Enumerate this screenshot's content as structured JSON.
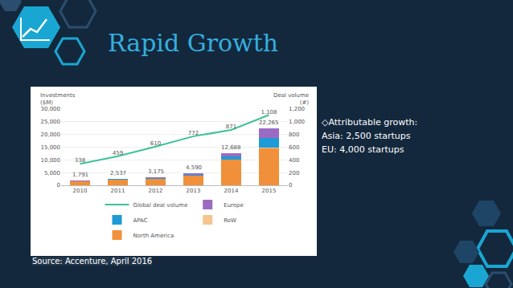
{
  "slide": {
    "title": "Rapid Growth",
    "bullets": [
      "◇Attributable growth:",
      "Asia: 2,500 startups",
      "EU: 4,000 startups"
    ],
    "source": "Source: Accenture, April 2016"
  },
  "chart_data": {
    "type": "bar",
    "stacked": true,
    "grid": true,
    "legend": "bottom",
    "data_labels": true,
    "y_label": "Investments ($M)",
    "y2_label": "Deal volume (#)",
    "categories": [
      "2010",
      "2011",
      "2012",
      "2013",
      "2014",
      "2015"
    ],
    "series": [
      {
        "name": "North America",
        "color": "#f0903a",
        "values": [
          1500,
          2100,
          2600,
          3700,
          10000,
          14500
        ]
      },
      {
        "name": "RoW",
        "color": "#f6c48e",
        "values": [
          50,
          60,
          75,
          90,
          188,
          265
        ]
      },
      {
        "name": "APAC",
        "color": "#1e9ad6",
        "values": [
          141,
          227,
          300,
          450,
          1300,
          4000
        ]
      },
      {
        "name": "Europe",
        "color": "#9b6bc4",
        "values": [
          100,
          150,
          200,
          350,
          1200,
          3500
        ]
      },
      {
        "name": "Global deal volume",
        "type": "line",
        "axis": "y2",
        "color": "#3fc19a",
        "values": [
          338,
          459,
          610,
          772,
          871,
          1108
        ],
        "value_labels": [
          "338",
          "459",
          "610",
          "772",
          "871",
          "1,108"
        ]
      }
    ],
    "totals": {
      "values": [
        1791,
        2537,
        3175,
        4590,
        12688,
        22265
      ],
      "value_labels": [
        "1,791",
        "2,537",
        "3,175",
        "4,590",
        "12,688",
        "22,265"
      ]
    },
    "ylim": [
      0,
      30000
    ],
    "yticks": [
      0,
      {
        "value": 5000,
        "label": "5,000"
      },
      {
        "value": 10000,
        "label": "10,000"
      },
      {
        "value": 15000,
        "label": "15,000"
      },
      {
        "value": 20000,
        "label": "20,000"
      },
      {
        "value": 25000,
        "label": "25,000"
      },
      {
        "value": 30000,
        "label": "30,000"
      }
    ],
    "y2lim": [
      0,
      1200
    ],
    "y2ticks": [
      0,
      200,
      400,
      600,
      800,
      {
        "value": 1000,
        "label": "1,000"
      },
      {
        "value": 1200,
        "label": "1,200"
      }
    ]
  }
}
